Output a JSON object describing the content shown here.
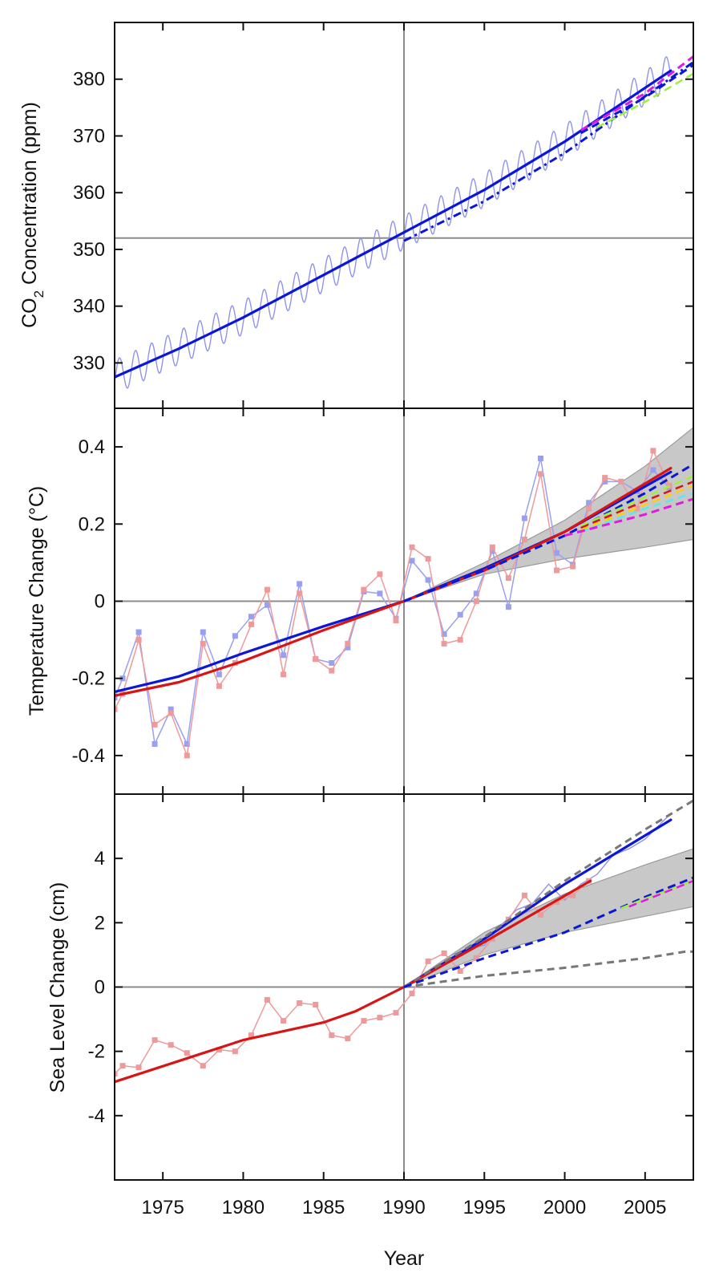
{
  "figure": {
    "xlabel": "Year",
    "x_ticks": [
      1975,
      1980,
      1985,
      1990,
      1995,
      2000,
      2005
    ],
    "xlim": [
      1972,
      2008
    ],
    "reference_year": 1990
  },
  "chart_data": [
    {
      "type": "line",
      "id": "co2",
      "ylabel_main": "CO",
      "ylabel_sub": "2",
      "ylabel_rest": " Concentration (ppm)",
      "ylim": [
        322,
        390
      ],
      "y_ticks": [
        330,
        340,
        350,
        360,
        370,
        380
      ],
      "reference_y": 352,
      "band": null,
      "series": [
        {
          "role": "observed-monthly",
          "color": "#8f93ee",
          "width": 1.4,
          "dash": "",
          "seasonal_amplitude": 3.0,
          "x": [
            1972.0,
            1980.0,
            1985.0,
            1990.0,
            1995.0,
            2000.0,
            2006.6
          ],
          "y": [
            327.5,
            338.0,
            345.5,
            353.0,
            360.5,
            369.0,
            381.5
          ]
        },
        {
          "role": "observed-trend",
          "color": "#0a17d8",
          "width": 3.2,
          "dash": "",
          "x": [
            1972.0,
            1976.0,
            1980.0,
            1985.0,
            1990.0,
            1995.0,
            2000.0,
            2006.6
          ],
          "y": [
            327.5,
            332.5,
            338.0,
            345.5,
            353.0,
            360.5,
            369.0,
            381.5
          ]
        },
        {
          "role": "projection",
          "color": "#0a17d8",
          "width": 3.0,
          "dash": "10 5 3 5",
          "x": [
            1990.0,
            1995.0,
            2000.0,
            2005.0,
            2008.0
          ],
          "y": [
            351.5,
            358.5,
            367.0,
            377.0,
            383.0
          ]
        },
        {
          "role": "projection",
          "color": "#e01ae0",
          "width": 3.0,
          "dash": "10 6",
          "x": [
            2001.0,
            2005.0,
            2008.0
          ],
          "y": [
            371.0,
            377.5,
            384.0
          ]
        },
        {
          "role": "projection",
          "color": "#0a17d8",
          "width": 3.0,
          "dash": "10 6",
          "x": [
            2001.0,
            2005.0,
            2008.0
          ],
          "y": [
            370.5,
            376.8,
            382.5
          ]
        },
        {
          "role": "projection",
          "color": "#9ef03a",
          "width": 2.5,
          "dash": "10 6",
          "x": [
            2002.0,
            2005.0,
            2008.0
          ],
          "y": [
            371.5,
            376.0,
            381.0
          ]
        }
      ]
    },
    {
      "type": "line",
      "id": "temperature",
      "ylabel": "Temperature Change (°C)",
      "ylim": [
        -0.5,
        0.5
      ],
      "y_ticks": [
        -0.4,
        -0.2,
        0,
        0.2,
        0.4
      ],
      "reference_y": 0,
      "band": {
        "color": "#c8c8c8",
        "edge": "#9a9a9a",
        "x": [
          1990.0,
          1995.0,
          2000.0,
          2005.0,
          2008.0
        ],
        "upper": [
          0.0,
          0.1,
          0.21,
          0.35,
          0.45
        ],
        "lower": [
          0.0,
          0.07,
          0.11,
          0.14,
          0.16
        ]
      },
      "series": [
        {
          "role": "observed-annual",
          "color": "#9aa0f0",
          "width": 1.5,
          "markers": true,
          "x": [
            1972.0,
            1972.5,
            1973.5,
            1974.5,
            1975.5,
            1976.5,
            1977.5,
            1978.5,
            1979.5,
            1980.5,
            1981.5,
            1982.5,
            1983.5,
            1984.5,
            1985.5,
            1986.5,
            1987.5,
            1988.5,
            1989.5,
            1990.5,
            1991.5,
            1992.5,
            1993.5,
            1994.5,
            1995.5,
            1996.5,
            1997.5,
            1998.5,
            1999.5,
            2000.5,
            2001.5,
            2002.5,
            2003.5,
            2004.5,
            2005.5,
            2006.5
          ],
          "y": [
            -0.25,
            -0.2,
            -0.08,
            -0.37,
            -0.28,
            -0.37,
            -0.08,
            -0.19,
            -0.09,
            -0.04,
            -0.01,
            -0.14,
            0.045,
            -0.15,
            -0.16,
            -0.12,
            0.025,
            0.02,
            -0.045,
            0.105,
            0.055,
            -0.085,
            -0.035,
            0.02,
            0.13,
            -0.015,
            0.215,
            0.37,
            0.125,
            0.095,
            0.255,
            0.31,
            0.31,
            0.285,
            0.34,
            0.295
          ]
        },
        {
          "role": "observed-annual",
          "color": "#ee9a9a",
          "width": 1.5,
          "markers": true,
          "x": [
            1972.0,
            1972.5,
            1973.5,
            1974.5,
            1975.5,
            1976.5,
            1977.5,
            1978.5,
            1979.5,
            1980.5,
            1981.5,
            1982.5,
            1983.5,
            1984.5,
            1985.5,
            1986.5,
            1987.5,
            1988.5,
            1989.5,
            1990.5,
            1991.5,
            1992.5,
            1993.5,
            1994.5,
            1995.5,
            1996.5,
            1997.5,
            1998.5,
            1999.5,
            2000.5,
            2001.5,
            2002.5,
            2003.5,
            2004.5,
            2005.5,
            2006.5
          ],
          "y": [
            -0.28,
            -0.24,
            -0.1,
            -0.32,
            -0.29,
            -0.4,
            -0.11,
            -0.22,
            -0.16,
            -0.06,
            0.03,
            -0.19,
            0.02,
            -0.15,
            -0.18,
            -0.11,
            0.03,
            0.07,
            -0.05,
            0.14,
            0.11,
            -0.11,
            -0.1,
            0.0,
            0.14,
            0.06,
            0.16,
            0.33,
            0.08,
            0.09,
            0.24,
            0.32,
            0.31,
            0.24,
            0.39,
            0.3
          ]
        },
        {
          "role": "observed-trend",
          "color": "#0a17d8",
          "width": 3.2,
          "dash": "",
          "x": [
            1972.0,
            1976.0,
            1980.0,
            1985.0,
            1990.0,
            1995.0,
            2000.0,
            2006.6
          ],
          "y": [
            -0.235,
            -0.195,
            -0.135,
            -0.065,
            0.0,
            0.085,
            0.18,
            0.335
          ]
        },
        {
          "role": "observed-trend",
          "color": "#d81414",
          "width": 3.2,
          "dash": "",
          "x": [
            1972.0,
            1976.0,
            1980.0,
            1985.0,
            1990.0,
            1995.0,
            2000.0,
            2006.6
          ],
          "y": [
            -0.245,
            -0.21,
            -0.155,
            -0.075,
            0.0,
            0.08,
            0.18,
            0.345
          ]
        },
        {
          "role": "projection",
          "color": "#0a17d8",
          "width": 3.0,
          "dash": "10 6",
          "x": [
            1990.0,
            1995.0,
            2000.0,
            2005.0,
            2008.0
          ],
          "y": [
            0.0,
            0.08,
            0.17,
            0.28,
            0.355
          ]
        },
        {
          "role": "projection",
          "color": "#9ef03a",
          "width": 2.5,
          "dash": "10 6",
          "x": [
            2001.0,
            2005.0,
            2008.0
          ],
          "y": [
            0.195,
            0.27,
            0.325
          ]
        },
        {
          "role": "projection",
          "color": "#d81414",
          "width": 2.5,
          "dash": "10 6",
          "x": [
            2001.0,
            2005.0,
            2008.0
          ],
          "y": [
            0.19,
            0.26,
            0.31
          ]
        },
        {
          "role": "projection",
          "color": "#ffd000",
          "width": 2.5,
          "dash": "10 6",
          "x": [
            2001.0,
            2005.0,
            2008.0
          ],
          "y": [
            0.185,
            0.25,
            0.3
          ]
        },
        {
          "role": "projection",
          "color": "#5ce8ec",
          "width": 2.5,
          "dash": "10 6",
          "x": [
            2001.0,
            2005.0,
            2008.0
          ],
          "y": [
            0.18,
            0.24,
            0.28
          ]
        },
        {
          "role": "projection",
          "color": "#e01ae0",
          "width": 3.0,
          "dash": "10 6",
          "x": [
            2000.0,
            2005.0,
            2008.0
          ],
          "y": [
            0.17,
            0.225,
            0.265
          ]
        }
      ]
    },
    {
      "type": "line",
      "id": "sea-level",
      "ylabel": "Sea Level Change (cm)",
      "ylim": [
        -6,
        6
      ],
      "y_ticks": [
        -4,
        -2,
        0,
        2,
        4
      ],
      "reference_y": 0,
      "band": {
        "color": "#c8c8c8",
        "edge": "#9a9a9a",
        "x": [
          1990.0,
          1995.0,
          2000.0,
          2005.0,
          2008.0
        ],
        "upper": [
          0.0,
          1.7,
          2.9,
          3.8,
          4.3
        ],
        "lower": [
          0.0,
          1.0,
          1.7,
          2.2,
          2.5
        ]
      },
      "series": [
        {
          "role": "observed-satellite",
          "color": "#8f93ee",
          "width": 1.4,
          "dash": "",
          "x": [
            1993.0,
            1994.0,
            1995.0,
            1996.0,
            1997.0,
            1998.0,
            1999.0,
            2000.0,
            2001.0,
            2002.0,
            2003.0,
            2004.0,
            2005.0,
            2006.0,
            2006.6
          ],
          "y": [
            1.0,
            1.2,
            1.3,
            1.9,
            2.4,
            2.6,
            3.2,
            2.7,
            3.2,
            3.5,
            4.1,
            4.3,
            4.6,
            5.1,
            5.4
          ]
        },
        {
          "role": "observed-tide-gauge",
          "color": "#ee9a9a",
          "width": 1.5,
          "markers": true,
          "x": [
            1972.0,
            1972.5,
            1973.5,
            1974.5,
            1975.5,
            1976.5,
            1977.5,
            1978.5,
            1979.5,
            1980.5,
            1981.5,
            1982.5,
            1983.5,
            1984.5,
            1985.5,
            1986.5,
            1987.5,
            1988.5,
            1989.5,
            1990.5,
            1991.5,
            1992.5,
            1993.5,
            1994.5,
            1995.5,
            1996.5,
            1997.5,
            1998.5,
            1999.5,
            2000.5,
            2001.5
          ],
          "y": [
            -2.7,
            -2.45,
            -2.5,
            -1.65,
            -1.8,
            -2.05,
            -2.45,
            -1.95,
            -2.0,
            -1.5,
            -0.4,
            -1.05,
            -0.5,
            -0.55,
            -1.5,
            -1.6,
            -1.05,
            -0.95,
            -0.8,
            -0.2,
            0.8,
            1.05,
            0.5,
            0.9,
            1.5,
            2.1,
            2.85,
            2.25,
            2.65,
            2.85,
            3.3
          ]
        },
        {
          "role": "observed-trend",
          "color": "#0a17d8",
          "width": 3.2,
          "dash": "",
          "x": [
            1990.0,
            1995.0,
            2000.0,
            2006.6
          ],
          "y": [
            0.0,
            1.5,
            3.2,
            5.2
          ]
        },
        {
          "role": "observed-trend",
          "color": "#d81414",
          "width": 3.2,
          "dash": "",
          "x": [
            1972.0,
            1976.0,
            1980.0,
            1985.0,
            1987.0,
            1990.0,
            1995.0,
            2001.6
          ],
          "y": [
            -2.95,
            -2.3,
            -1.65,
            -1.1,
            -0.75,
            0.0,
            1.4,
            3.3
          ]
        },
        {
          "role": "projection",
          "color": "#777777",
          "width": 3.0,
          "dash": "9 6",
          "x": [
            1990.0,
            1995.0,
            2000.0,
            2005.0,
            2008.0
          ],
          "y": [
            0.0,
            1.55,
            3.3,
            4.9,
            5.8
          ]
        },
        {
          "role": "projection",
          "color": "#777777",
          "width": 3.0,
          "dash": "9 6",
          "x": [
            1990.0,
            1995.0,
            2000.0,
            2005.0,
            2007.5,
            2008.0
          ],
          "y": [
            0.0,
            0.35,
            0.6,
            0.9,
            1.1,
            1.1
          ]
        },
        {
          "role": "projection",
          "color": "#0a17d8",
          "width": 3.0,
          "dash": "10 6",
          "x": [
            1990.0,
            1995.0,
            2000.0,
            2005.0,
            2008.0
          ],
          "y": [
            0.0,
            0.9,
            1.7,
            2.8,
            3.4
          ]
        },
        {
          "role": "projection",
          "color": "#9ef03a",
          "width": 2.5,
          "dash": "10 6",
          "x": [
            2003.5,
            2005.0,
            2008.0
          ],
          "y": [
            2.45,
            2.75,
            3.3
          ]
        },
        {
          "role": "projection",
          "color": "#e01ae0",
          "width": 2.5,
          "dash": "10 6",
          "x": [
            2004.0,
            2006.0,
            2008.0
          ],
          "y": [
            2.5,
            2.9,
            3.3
          ]
        }
      ]
    }
  ]
}
